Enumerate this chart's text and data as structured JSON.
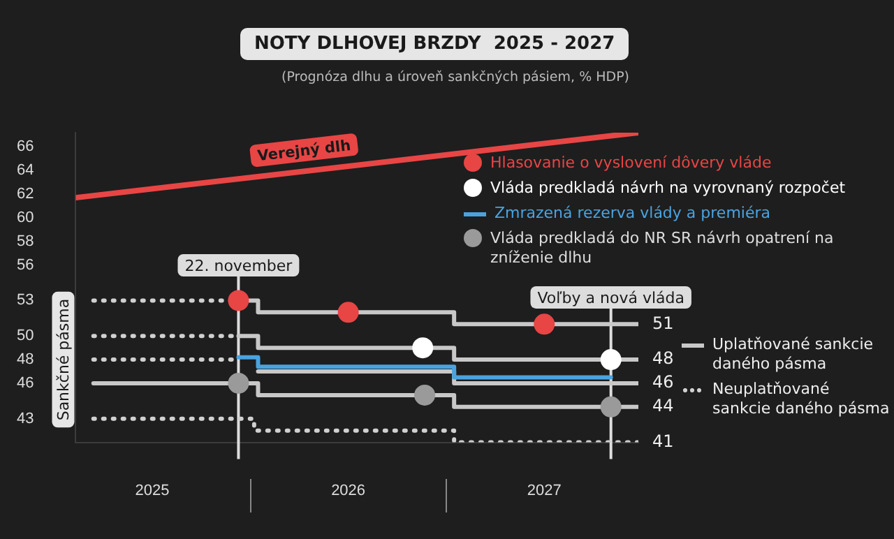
{
  "chart_data": {
    "type": "line",
    "title": "NOTY DLHOVEJ BRZDY  2025 - 2027",
    "subtitle": "(Prognóza dlhu a úroveň sankčných pásiem, % HDP)",
    "ylabel": "Sankčné pásma",
    "xlim": [
      2025.11,
      2027.98
    ],
    "ylim": [
      41,
      67.2
    ],
    "xticks": [
      {
        "value": 2025.5,
        "label": "2025"
      },
      {
        "value": 2026.5,
        "label": "2026"
      },
      {
        "value": 2027.5,
        "label": "2027"
      }
    ],
    "yticks": [
      43,
      46,
      48,
      50,
      53,
      56,
      58,
      60,
      62,
      64,
      66
    ],
    "grid": false,
    "legend": "right",
    "ref_lines": [
      {
        "axis": "x",
        "value": 2025.94,
        "label": "22. november",
        "color": "#dddddd"
      },
      {
        "axis": "x",
        "value": 2027.84,
        "label": "Voľby a nová vláda",
        "color": "#dddddd"
      }
    ],
    "series": [
      {
        "name": "Verejný dlh",
        "color": "#e84545",
        "x": [
          2025.11,
          2027.98
        ],
        "values": [
          61.7,
          67.2
        ]
      },
      {
        "type": "scatter",
        "name": "Hlasovanie o vyslovení dôvery vláde",
        "color": "#e84545",
        "marker": "circle",
        "x": [
          2025.94,
          2026.5,
          2027.5
        ],
        "values": [
          53,
          52,
          51
        ]
      },
      {
        "type": "scatter",
        "name": "Vláda predkladá  návrh na vyrovnaný rozpočet",
        "color": "#ffffff",
        "marker": "circle",
        "x": [
          2026.88,
          2027.84
        ],
        "values": [
          49,
          48
        ]
      },
      {
        "name": "Zmrazená rezerva vlády a premiéra",
        "color": "#4aa3df",
        "line_style": "solid",
        "x": [
          2025.94,
          2026.04,
          2026.04,
          2027.04,
          2027.04,
          2027.84
        ],
        "values": [
          48.2,
          48.2,
          47.4,
          47.4,
          46.5,
          46.5
        ]
      },
      {
        "type": "scatter",
        "name": "Vláda predkladá do NR SR návrh opatrení na zníženie dlhu",
        "color": "#9a9a9a",
        "marker": "circle",
        "x": [
          2025.94,
          2026.89,
          2027.84
        ],
        "values": [
          46,
          45,
          44
        ]
      },
      {
        "name": "Uplatňované sankcie daného pásma",
        "color": "#c8c8c8",
        "line_style": "solid",
        "x": [
          2025.94,
          2026.04,
          2026.04,
          2027.04,
          2027.04,
          2027.98
        ],
        "values": [
          53,
          53,
          52,
          52,
          51,
          51
        ],
        "value_labels": [
          null,
          null,
          null,
          null,
          null,
          "51"
        ]
      },
      {
        "color": "#c8c8c8",
        "line_style": "solid",
        "x": [
          2025.94,
          2026.04,
          2026.04,
          2027.04,
          2027.04,
          2027.98
        ],
        "values": [
          50,
          50,
          49,
          49,
          48,
          48
        ],
        "value_labels": [
          null,
          null,
          null,
          null,
          null,
          "48"
        ]
      },
      {
        "color": "#c8c8c8",
        "line_style": "solid",
        "x": [
          2026.04,
          2027.04,
          2027.04,
          2027.98
        ],
        "values": [
          47,
          47,
          46,
          46
        ],
        "value_labels": [
          null,
          null,
          null,
          "46"
        ]
      },
      {
        "color": "#c8c8c8",
        "line_style": "solid",
        "x": [
          2025.2,
          2026.04,
          2026.04,
          2027.04,
          2027.04,
          2027.98
        ],
        "values": [
          46,
          46,
          45,
          45,
          44,
          44
        ],
        "value_labels": [
          null,
          null,
          null,
          null,
          null,
          "44"
        ]
      },
      {
        "name": "Neuplatňované sankcie daného pásma",
        "color": "#d0d0d0",
        "line_style": "dotted",
        "x": [
          2025.2,
          2025.94
        ],
        "values": [
          53,
          53
        ]
      },
      {
        "color": "#d0d0d0",
        "line_style": "dotted",
        "x": [
          2025.2,
          2025.94
        ],
        "values": [
          50,
          50
        ]
      },
      {
        "color": "#d0d0d0",
        "line_style": "dotted",
        "x": [
          2025.2,
          2025.92
        ],
        "values": [
          48,
          48
        ]
      },
      {
        "color": "#d0d0d0",
        "line_style": "dotted",
        "x": [
          2025.2,
          2026.02,
          2026.02,
          2027.04,
          2027.04,
          2027.98
        ],
        "values": [
          43,
          43,
          42,
          42,
          41,
          41
        ],
        "value_labels": [
          null,
          null,
          null,
          null,
          null,
          "41"
        ]
      }
    ]
  }
}
